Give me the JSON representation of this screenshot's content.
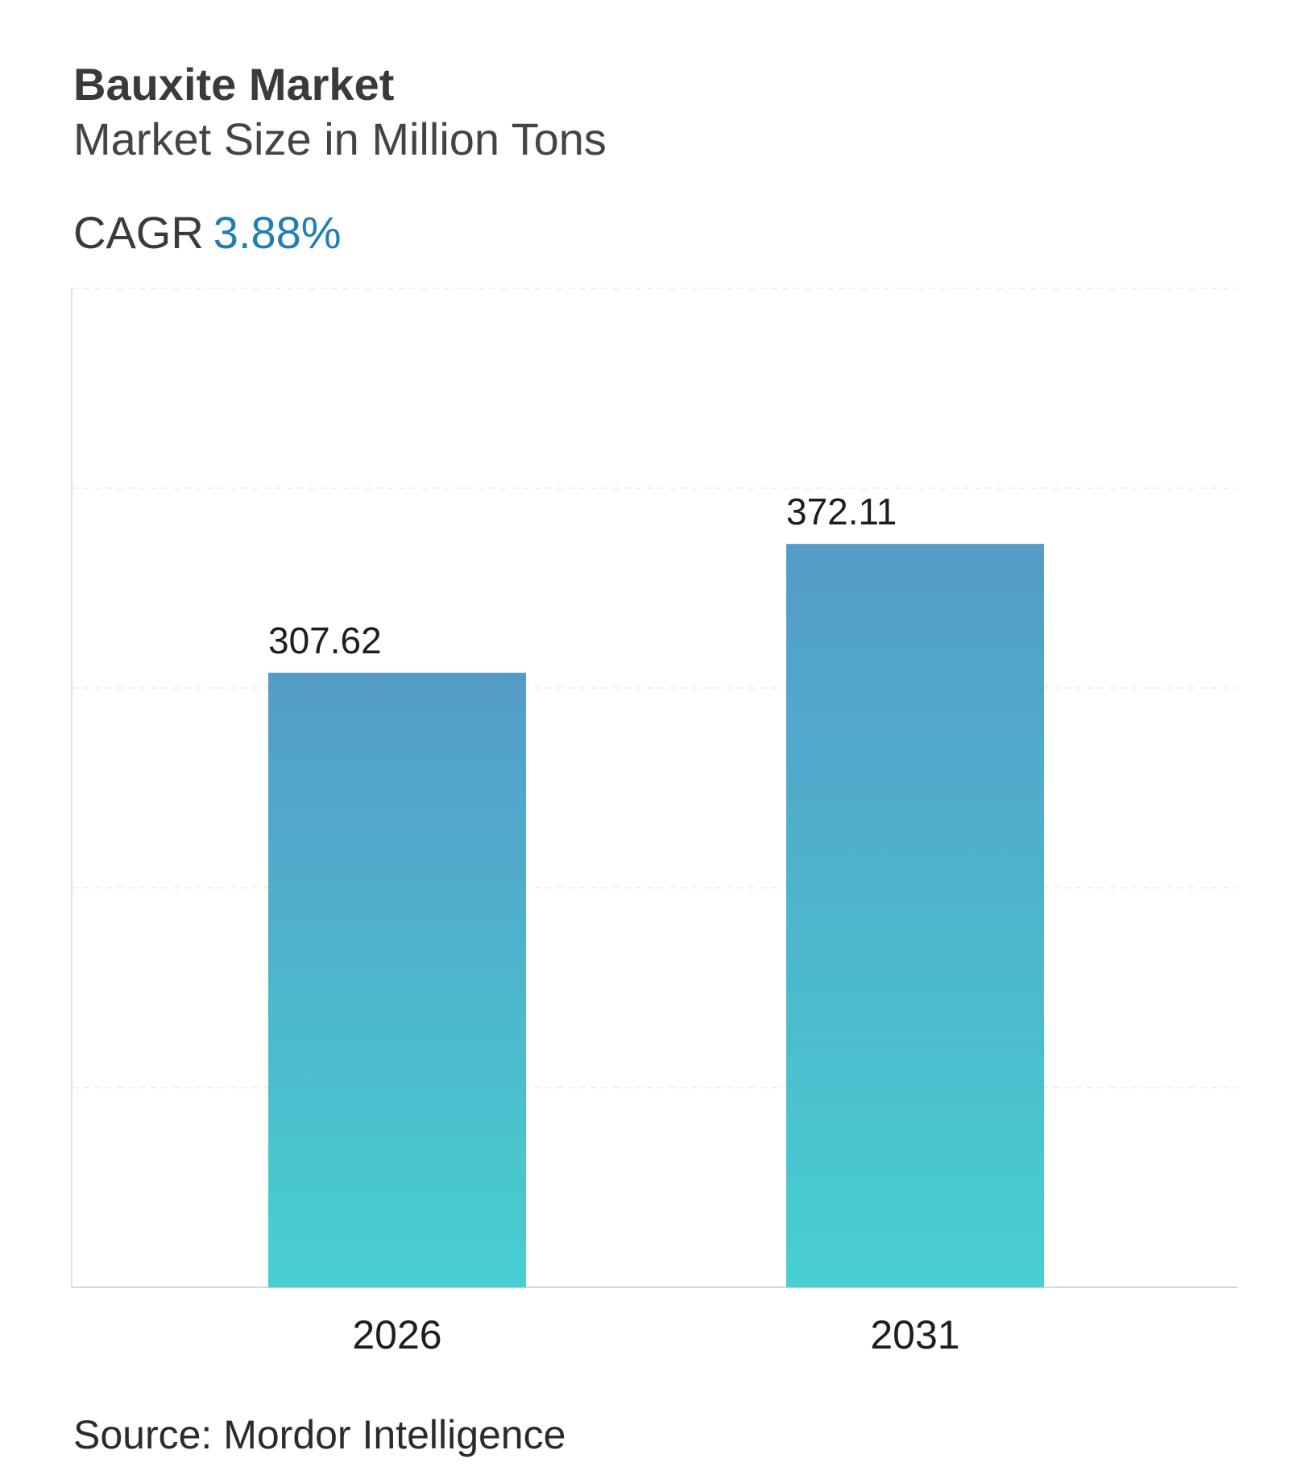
{
  "header": {
    "title": "Bauxite Market",
    "subtitle": "Market Size in Million Tons",
    "cagr_label": "CAGR",
    "cagr_value": "3.88%"
  },
  "footer": {
    "source": "Source: Mordor Intelligence"
  },
  "colors": {
    "bar_top": "#549cc7",
    "bar_bottom": "#47cfd1",
    "cagr_accent": "#1f7fb4"
  },
  "chart_data": {
    "type": "bar",
    "categories": [
      "2026",
      "2031"
    ],
    "values": [
      307.62,
      372.11
    ],
    "value_labels": [
      "307.62",
      "372.11"
    ],
    "title": "Bauxite Market",
    "subtitle": "Market Size in Million Tons",
    "xlabel": "",
    "ylabel": "",
    "ylim": [
      0,
      500
    ],
    "grid": true,
    "legend": "none"
  }
}
